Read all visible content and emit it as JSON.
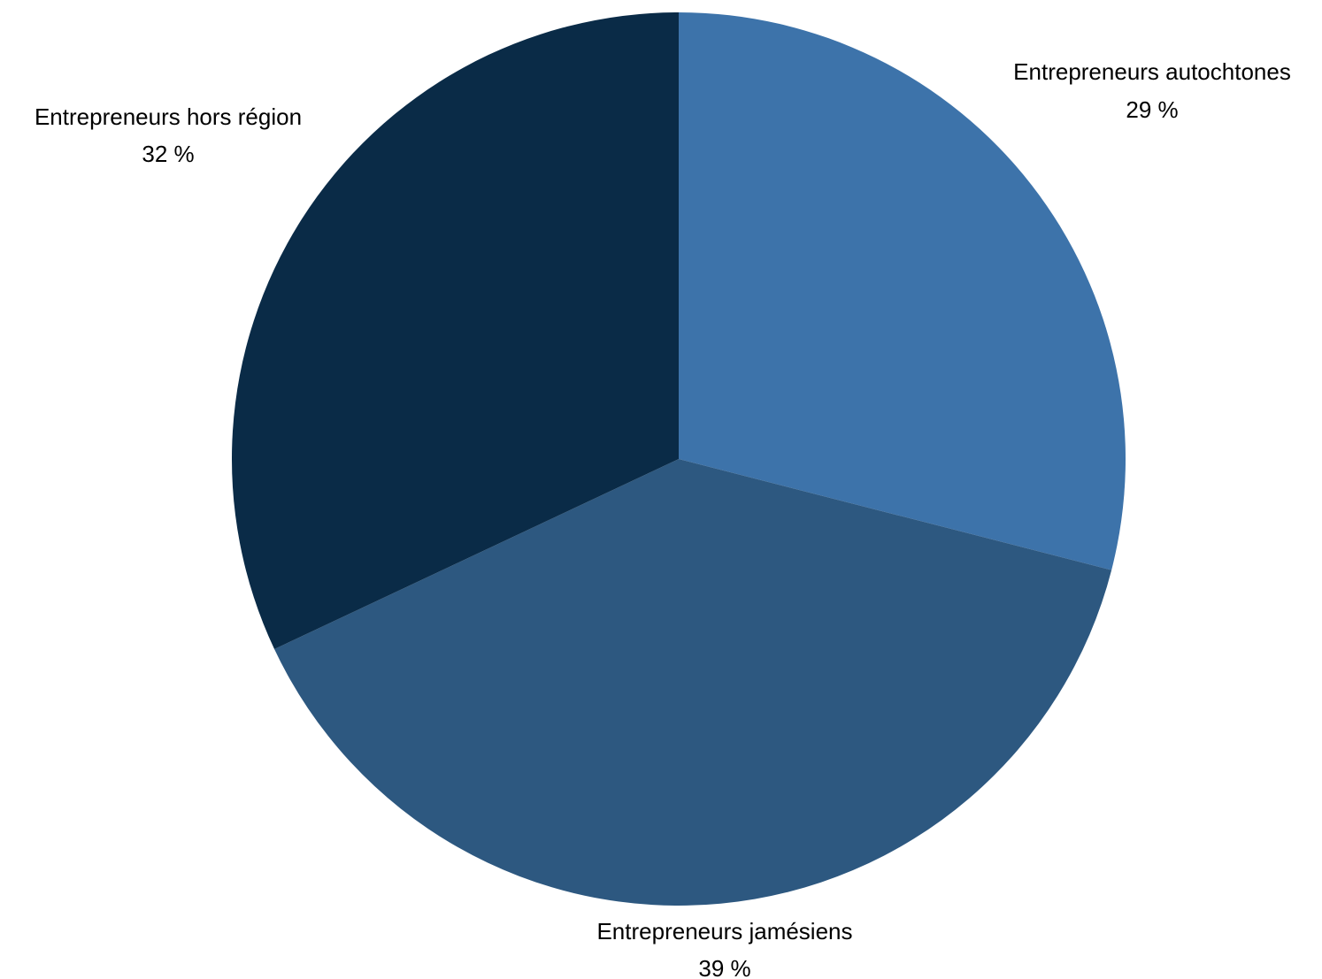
{
  "chart_data": {
    "type": "pie",
    "start_angle_deg": 0,
    "direction": "clockwise",
    "slices": [
      {
        "name": "Entrepreneurs autochtones",
        "value": 29,
        "label": "29 %",
        "color": "#3d73aa"
      },
      {
        "name": "Entrepreneurs jamésiens",
        "value": 39,
        "label": "39 %",
        "color": "#2d5880"
      },
      {
        "name": "Entrepreneurs hors région",
        "value": 32,
        "label": "32 %",
        "color": "#0a2b47"
      }
    ]
  }
}
